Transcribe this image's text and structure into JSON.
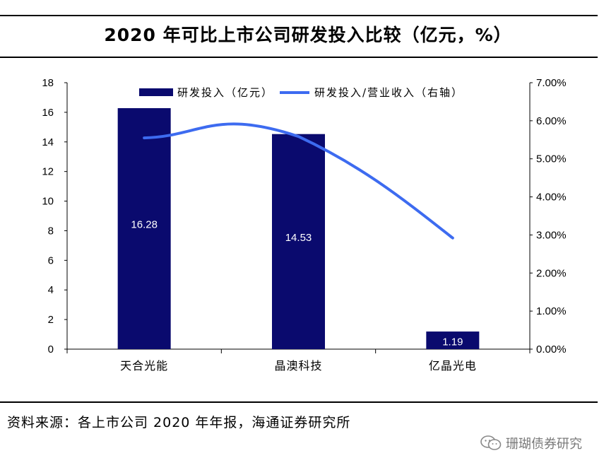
{
  "header": {
    "title": "2020 年可比上市公司研发投入比较（亿元，%）"
  },
  "chart_data": {
    "type": "bar+line",
    "title": "2020 年可比上市公司研发投入比较（亿元，%）",
    "categories": [
      "天合光能",
      "晶澳科技",
      "亿晶光电"
    ],
    "series": [
      {
        "name": "研发投入（亿元）",
        "kind": "bar",
        "axis": "left",
        "values": [
          16.28,
          14.53,
          1.19
        ],
        "labels": [
          "16.28",
          "14.53",
          "1.19"
        ],
        "color": "#0A0A6E"
      },
      {
        "name": "研发投入/营业收入（右轴）",
        "kind": "line",
        "axis": "right",
        "values": [
          5.55,
          5.55,
          2.92
        ],
        "color": "#3D6BF0"
      }
    ],
    "left_axis": {
      "min": 0,
      "max": 18,
      "ticks": [
        "0",
        "2",
        "4",
        "6",
        "8",
        "10",
        "12",
        "14",
        "16",
        "18"
      ]
    },
    "right_axis": {
      "min": 0,
      "max": 7,
      "ticks": [
        "0.00%",
        "1.00%",
        "2.00%",
        "3.00%",
        "4.00%",
        "5.00%",
        "6.00%",
        "7.00%"
      ]
    },
    "legend": {
      "position": "top-center"
    }
  },
  "footer": {
    "source": "资料来源：各上市公司 2020 年年报，海通证券研究所",
    "watermark": "珊瑚债券研究"
  }
}
